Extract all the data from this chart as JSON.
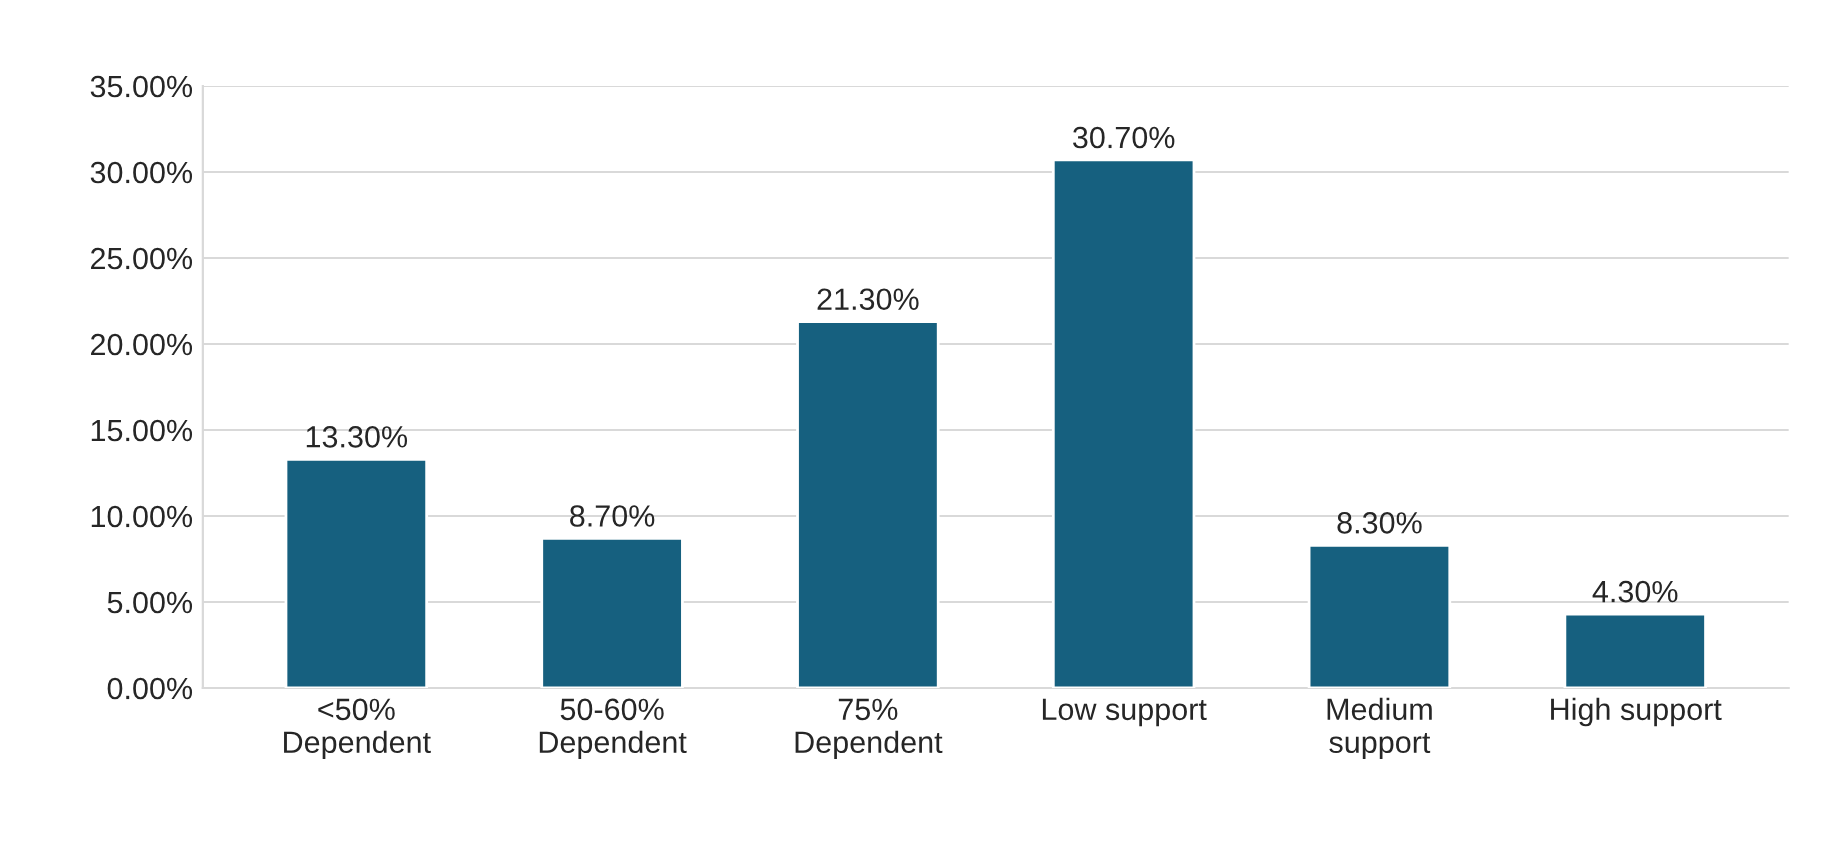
{
  "chart_data": {
    "type": "bar",
    "categories": [
      "<50%\nDependent",
      "50-60%\nDependent",
      "75%\nDependent",
      "Low support",
      "Medium\nsupport",
      "High support"
    ],
    "values": [
      13.3,
      8.7,
      21.3,
      30.7,
      8.3,
      4.3
    ],
    "value_labels": [
      "13.30%",
      "8.70%",
      "21.30%",
      "30.70%",
      "8.30%",
      "4.30%"
    ],
    "color": "#16607f",
    "ylim": [
      0,
      35
    ],
    "yticks": [
      {
        "value": 0,
        "label": "0.00%"
      },
      {
        "value": 5,
        "label": "5.00%"
      },
      {
        "value": 10,
        "label": "10.00%"
      },
      {
        "value": 15,
        "label": "15.00%"
      },
      {
        "value": 20,
        "label": "20.00%"
      },
      {
        "value": 25,
        "label": "25.00%"
      },
      {
        "value": 30,
        "label": "30.00%"
      },
      {
        "value": 35,
        "label": "35.00%"
      }
    ],
    "grid": "y"
  }
}
